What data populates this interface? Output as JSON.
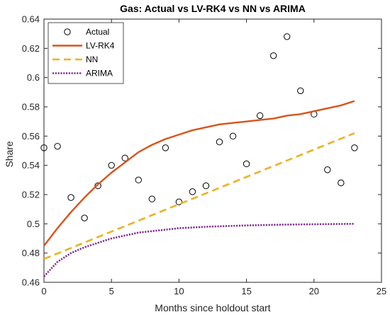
{
  "chart_data": {
    "type": "line",
    "title": "Gas: Actual vs LV-RK4 vs NN vs  ARIMA",
    "xlabel": "Months since holdout start",
    "ylabel": "Share",
    "xlim": [
      0,
      25
    ],
    "ylim": [
      0.46,
      0.64
    ],
    "xticks": [
      0,
      5,
      10,
      15,
      20,
      25
    ],
    "yticks": [
      0.46,
      0.48,
      0.5,
      0.52,
      0.54,
      0.56,
      0.58,
      0.6,
      0.62,
      0.64
    ],
    "grid": false,
    "legend_position": "top-left",
    "series": [
      {
        "name": "Actual",
        "style": "markers",
        "color": "#000000",
        "x": [
          0,
          1,
          2,
          3,
          4,
          5,
          6,
          7,
          8,
          9,
          10,
          11,
          12,
          13,
          14,
          15,
          16,
          17,
          18,
          19,
          20,
          21,
          22,
          23
        ],
        "y": [
          0.552,
          0.553,
          0.518,
          0.504,
          0.526,
          0.54,
          0.545,
          0.53,
          0.517,
          0.552,
          0.515,
          0.522,
          0.526,
          0.556,
          0.56,
          0.541,
          0.574,
          0.615,
          0.628,
          0.591,
          0.575,
          0.537,
          0.528,
          0.552
        ]
      },
      {
        "name": "LV-RK4",
        "style": "solid",
        "color": "#D95319",
        "x": [
          0,
          1,
          2,
          3,
          4,
          5,
          6,
          7,
          8,
          9,
          10,
          11,
          12,
          13,
          14,
          15,
          16,
          17,
          18,
          19,
          20,
          21,
          22,
          23
        ],
        "y": [
          0.485,
          0.497,
          0.508,
          0.518,
          0.527,
          0.535,
          0.542,
          0.549,
          0.554,
          0.558,
          0.561,
          0.564,
          0.566,
          0.568,
          0.569,
          0.57,
          0.571,
          0.572,
          0.574,
          0.575,
          0.577,
          0.579,
          0.581,
          0.584
        ]
      },
      {
        "name": "NN",
        "style": "dashed",
        "color": "#EDB120",
        "x": [
          0,
          23
        ],
        "y": [
          0.476,
          0.562
        ]
      },
      {
        "name": "ARIMA",
        "style": "dotted",
        "color": "#7E2F8E",
        "x": [
          0,
          1,
          2,
          3,
          4,
          5,
          6,
          7,
          8,
          9,
          10,
          11,
          12,
          13,
          14,
          15,
          16,
          17,
          18,
          19,
          20,
          21,
          22,
          23
        ],
        "y": [
          0.464,
          0.474,
          0.48,
          0.484,
          0.487,
          0.49,
          0.492,
          0.494,
          0.495,
          0.496,
          0.497,
          0.4975,
          0.498,
          0.4983,
          0.4986,
          0.4989,
          0.4991,
          0.4993,
          0.4995,
          0.4996,
          0.4997,
          0.4998,
          0.4999,
          0.5
        ]
      }
    ]
  }
}
